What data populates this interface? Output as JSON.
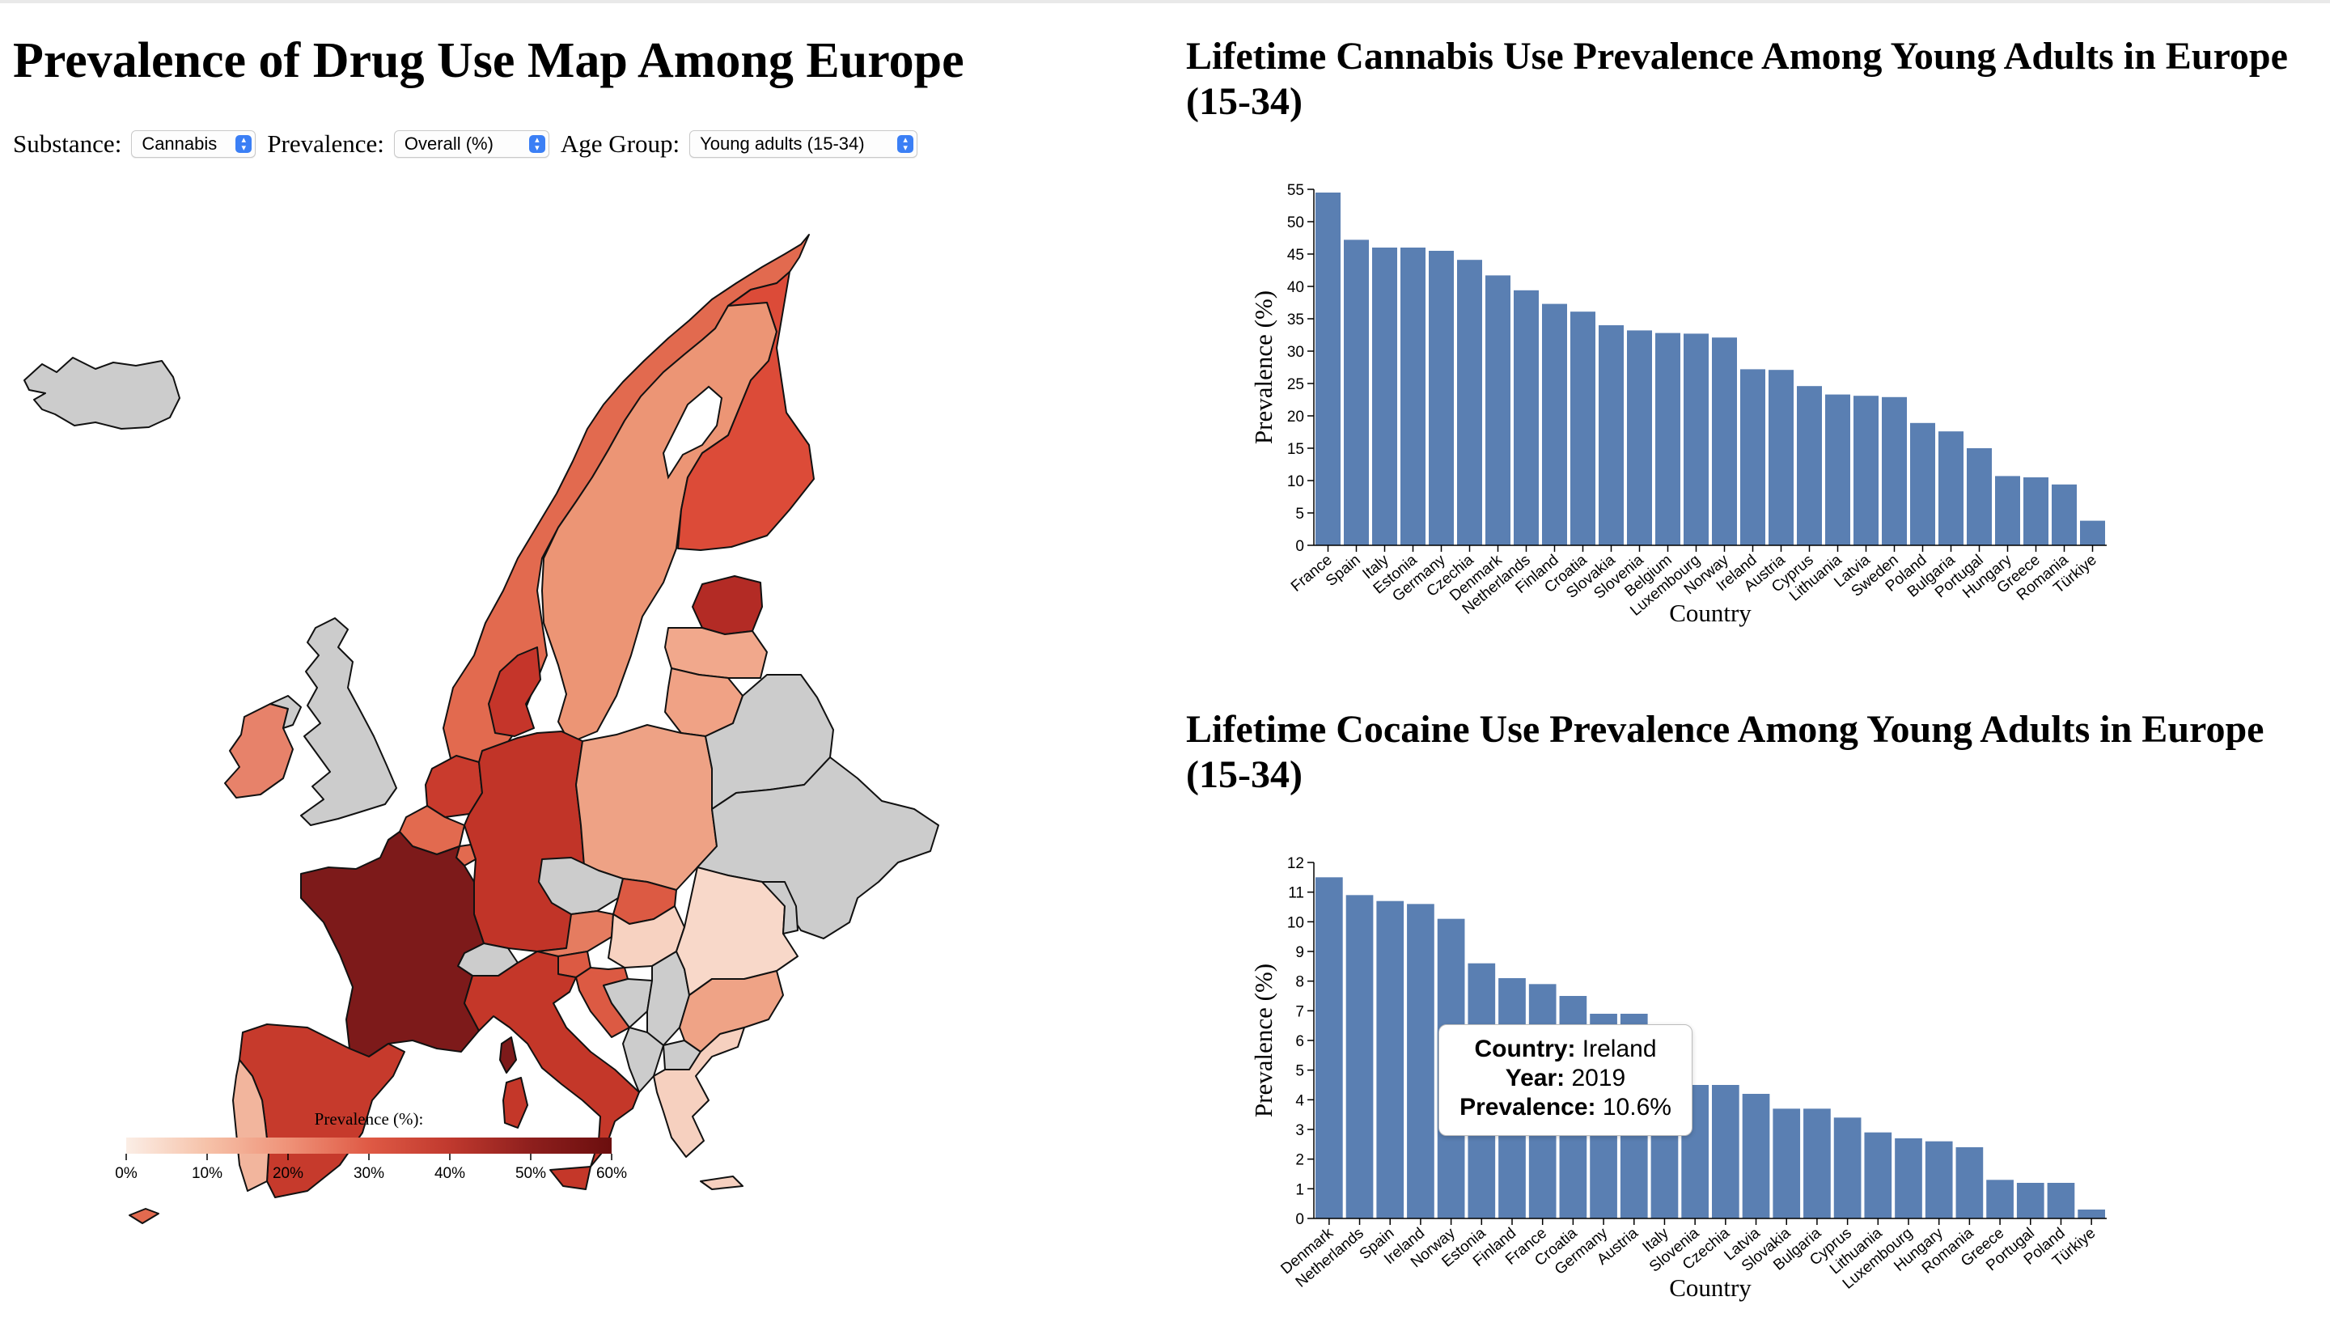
{
  "map": {
    "title": "Prevalence of Drug Use Map Among Europe",
    "controls": [
      {
        "label": "Substance:",
        "value": "Cannabis"
      },
      {
        "label": "Prevalence:",
        "value": "Overall (%)"
      },
      {
        "label": "Age Group:",
        "value": "Young adults (15-34)"
      }
    ],
    "legend": {
      "title": "Prevalence (%):",
      "ticks": [
        "0%",
        "10%",
        "20%",
        "30%",
        "40%",
        "50%",
        "60%"
      ],
      "colors": [
        "#fbeee6",
        "#f6c2a9",
        "#ef9278",
        "#df5a45",
        "#c0392e",
        "#8e1f1d",
        "#6b0e0e"
      ]
    },
    "no_data_color": "#cccccc"
  },
  "chart_data": [
    {
      "type": "bar",
      "title": "Lifetime Cannabis Use Prevalence Among Young Adults in Europe (15-34)",
      "xlabel": "Country",
      "ylabel": "Prevalence (%)",
      "ylim": [
        0,
        55
      ],
      "yticks": [
        0,
        5,
        10,
        15,
        20,
        25,
        30,
        35,
        40,
        45,
        50,
        55
      ],
      "color": "#5a7fb2",
      "categories": [
        "France",
        "Spain",
        "Italy",
        "Estonia",
        "Germany",
        "Czechia",
        "Denmark",
        "Netherlands",
        "Finland",
        "Croatia",
        "Slovakia",
        "Slovenia",
        "Belgium",
        "Luxembourg",
        "Norway",
        "Ireland",
        "Austria",
        "Cyprus",
        "Lithuania",
        "Latvia",
        "Sweden",
        "Poland",
        "Bulgaria",
        "Portugal",
        "Hungary",
        "Greece",
        "Romania",
        "Türkiye"
      ],
      "values": [
        54.5,
        47.2,
        46.0,
        46.0,
        45.5,
        44.1,
        41.7,
        39.4,
        37.3,
        36.1,
        34.0,
        33.2,
        32.8,
        32.7,
        32.1,
        27.2,
        27.1,
        24.6,
        23.3,
        23.1,
        22.9,
        18.9,
        17.6,
        15.0,
        10.7,
        10.5,
        9.4,
        3.8
      ]
    },
    {
      "type": "bar",
      "title": "Lifetime Cocaine Use Prevalence Among Young Adults in Europe (15-34)",
      "xlabel": "Country",
      "ylabel": "Prevalence (%)",
      "ylim": [
        0,
        12
      ],
      "yticks": [
        0,
        1,
        2,
        3,
        4,
        5,
        6,
        7,
        8,
        9,
        10,
        11,
        12
      ],
      "color": "#5a7fb2",
      "categories": [
        "Denmark",
        "Netherlands",
        "Spain",
        "Ireland",
        "Norway",
        "Estonia",
        "Finland",
        "France",
        "Croatia",
        "Germany",
        "Austria",
        "Italy",
        "Slovenia",
        "Czechia",
        "Latvia",
        "Slovakia",
        "Bulgaria",
        "Cyprus",
        "Lithuania",
        "Luxembourg",
        "Hungary",
        "Romania",
        "Greece",
        "Portugal",
        "Poland",
        "Türkiye"
      ],
      "values": [
        11.5,
        10.9,
        10.7,
        10.6,
        10.1,
        8.6,
        8.1,
        7.9,
        7.5,
        6.9,
        6.9,
        4.9,
        4.5,
        4.5,
        4.2,
        3.7,
        3.7,
        3.4,
        2.9,
        2.7,
        2.6,
        2.4,
        1.3,
        1.2,
        1.2,
        0.3
      ]
    }
  ],
  "tooltip": {
    "country_label": "Country:",
    "country": "Ireland",
    "year_label": "Year:",
    "year": "2019",
    "prevalence_label": "Prevalence:",
    "prevalence": "10.6%"
  }
}
